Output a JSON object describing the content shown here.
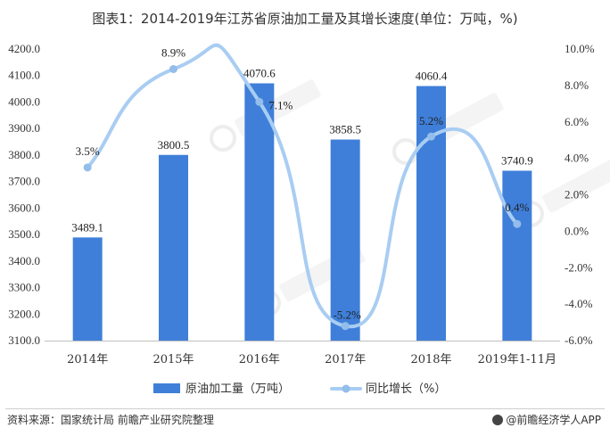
{
  "title": "图表1：2014-2019年江苏省原油加工量及其增长速度(单位：万吨，%)",
  "source_text": "资料来源：国家统计局 前瞻产业研究院整理",
  "brand_text": "@前瞻经济学人APP",
  "colors": {
    "bar": "#3f7fd9",
    "line": "#a9cdf2",
    "marker": "#93bdea"
  },
  "chart_data": {
    "type": "bar",
    "categories": [
      "2014年",
      "2015年",
      "2016年",
      "2017年",
      "2018年",
      "2019年1-11月"
    ],
    "series": [
      {
        "name": "原油加工量（万吨）",
        "type": "bar",
        "axis": "left",
        "values": [
          3489.1,
          3800.5,
          4070.6,
          3858.5,
          4060.4,
          3740.9
        ],
        "labels": [
          "3489.1",
          "3800.5",
          "4070.6",
          "3858.5",
          "4060.4",
          "3740.9"
        ]
      },
      {
        "name": "同比增长（%）",
        "type": "line",
        "axis": "right",
        "smooth": true,
        "values": [
          3.5,
          8.9,
          7.1,
          -5.2,
          5.2,
          0.4
        ],
        "labels": [
          "3.5%",
          "8.9%",
          "7.1%",
          "-5.2%",
          "5.2%",
          "0.4%"
        ]
      }
    ],
    "y_left": {
      "min": 3100,
      "max": 4200,
      "step": 100,
      "ticks": [
        "3100.0",
        "3200.0",
        "3300.0",
        "3400.0",
        "3500.0",
        "3600.0",
        "3700.0",
        "3800.0",
        "3900.0",
        "4000.0",
        "4100.0",
        "4200.0"
      ]
    },
    "y_right": {
      "min": -6,
      "max": 10,
      "step": 2,
      "ticks": [
        "-6.0%",
        "-4.0%",
        "-2.0%",
        "0.0%",
        "2.0%",
        "4.0%",
        "6.0%",
        "8.0%",
        "10.0%"
      ]
    },
    "legend_position": "bottom",
    "grid": false
  }
}
